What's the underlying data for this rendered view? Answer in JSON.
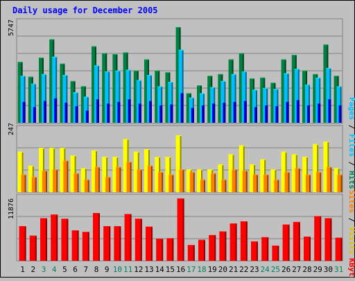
{
  "chart_data": [
    {
      "type": "bar",
      "title": "Daily usage for December 2005",
      "ymax_label": "5747",
      "ylim": [
        0,
        5747
      ],
      "legend": [
        "Pages",
        "Files",
        "Hits"
      ],
      "categories": [
        "1",
        "2",
        "3",
        "4",
        "5",
        "6",
        "7",
        "8",
        "9",
        "10",
        "11",
        "12",
        "13",
        "14",
        "15",
        "16",
        "17",
        "18",
        "19",
        "20",
        "21",
        "22",
        "23",
        "24",
        "25",
        "26",
        "27",
        "28",
        "29",
        "30",
        "31"
      ],
      "weekend_days": [
        "3",
        "4",
        "10",
        "11",
        "17",
        "18",
        "24",
        "25",
        "31"
      ],
      "series": [
        {
          "name": "Hits",
          "values": [
            3500,
            2650,
            3750,
            4800,
            3400,
            2400,
            2100,
            4400,
            4000,
            3950,
            4050,
            3000,
            3650,
            3000,
            2900,
            5500,
            1700,
            2150,
            2700,
            2800,
            3650,
            4000,
            2550,
            2600,
            2300,
            3650,
            3900,
            3000,
            2800,
            4500,
            2700
          ]
        },
        {
          "name": "Files",
          "values": [
            2700,
            2250,
            2800,
            3800,
            2750,
            1750,
            1500,
            3300,
            2950,
            3000,
            3050,
            2450,
            2750,
            2100,
            2350,
            4200,
            1450,
            1700,
            2050,
            2400,
            2800,
            2950,
            1900,
            2000,
            1950,
            2850,
            3100,
            2200,
            2600,
            3150,
            2100
          ]
        },
        {
          "name": "Pages",
          "values": [
            1200,
            900,
            1250,
            1400,
            1150,
            950,
            700,
            1350,
            1100,
            1200,
            1350,
            1100,
            1250,
            1000,
            1050,
            1700,
            850,
            1000,
            1100,
            1150,
            1200,
            1250,
            900,
            1000,
            950,
            1200,
            1300,
            1000,
            1100,
            1350,
            1000
          ]
        }
      ]
    },
    {
      "type": "bar",
      "ymax_label": "247",
      "ylim": [
        0,
        247
      ],
      "legend": [
        "Sites",
        "Visits"
      ],
      "series": [
        {
          "name": "Visits",
          "values": [
            160,
            105,
            175,
            175,
            175,
            145,
            95,
            165,
            140,
            140,
            210,
            160,
            170,
            140,
            140,
            225,
            90,
            90,
            90,
            110,
            150,
            185,
            110,
            130,
            90,
            160,
            150,
            140,
            190,
            200,
            95
          ]
        },
        {
          "name": "Sites",
          "values": [
            70,
            60,
            85,
            90,
            125,
            75,
            50,
            100,
            60,
            100,
            120,
            90,
            105,
            80,
            70,
            90,
            80,
            50,
            75,
            50,
            90,
            85,
            70,
            70,
            50,
            80,
            95,
            70,
            80,
            100,
            70
          ]
        }
      ]
    },
    {
      "type": "bar",
      "ymax_label": "11876",
      "ylim": [
        0,
        11876
      ],
      "legend": [
        "KBytes"
      ],
      "series": [
        {
          "name": "KBytes",
          "values": [
            6600,
            4800,
            8100,
            8800,
            8000,
            5800,
            5500,
            9100,
            6600,
            6600,
            8900,
            8000,
            6500,
            4200,
            4300,
            11876,
            3000,
            4000,
            4900,
            5600,
            7100,
            7500,
            3700,
            4500,
            2900,
            6900,
            7400,
            4600,
            8500,
            8100,
            4400
          ]
        }
      ]
    }
  ],
  "colors": {
    "hits": "#008040",
    "files": "#00c0ff",
    "pages": "#0000ff",
    "visits": "#ffff00",
    "sites": "#ff8000",
    "kbytes": "#ff0000",
    "title": "#0000ff",
    "weekday_label": "#000000",
    "weekend_label": "#00805c",
    "background": "#c0c0c0"
  }
}
